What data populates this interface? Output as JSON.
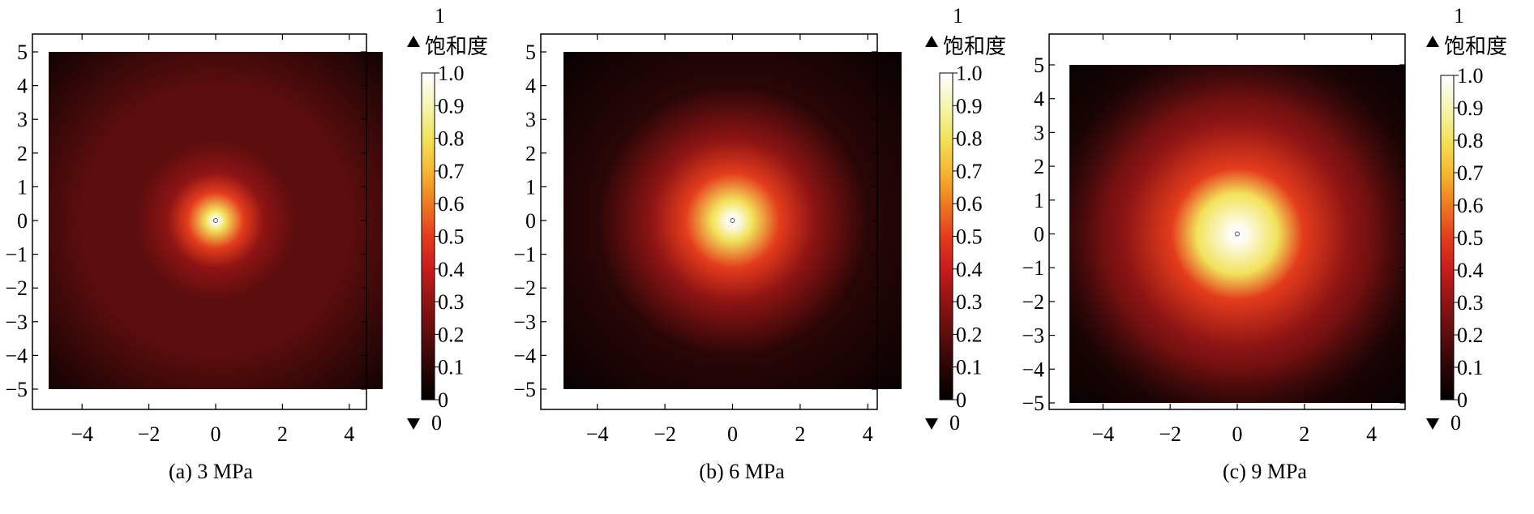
{
  "chart_data": [
    {
      "type": "heatmap",
      "caption": "(a) 3 MPa",
      "xlim": [
        -5,
        5
      ],
      "ylim": [
        -5,
        5
      ],
      "xticks": [
        -4,
        -2,
        0,
        2,
        4
      ],
      "yticks": [
        -5,
        -4,
        -3,
        -2,
        -1,
        0,
        1,
        2,
        3,
        4,
        5
      ],
      "saturation_profile": {
        "peak": 1.0,
        "core_radius": 0.3,
        "near_field_radius": 1.5,
        "background": 0.1
      },
      "colorbar": {
        "title": "饱和度",
        "max_marker": "1",
        "min_marker": "0",
        "ticks": [
          "0",
          "0.1",
          "0.2",
          "0.3",
          "0.4",
          "0.5",
          "0.6",
          "0.7",
          "0.8",
          "0.9",
          "1.0"
        ]
      }
    },
    {
      "type": "heatmap",
      "caption": "(b) 6 MPa",
      "xlim": [
        -5,
        5
      ],
      "ylim": [
        -5,
        5
      ],
      "xticks": [
        -4,
        -2,
        0,
        2,
        4
      ],
      "yticks": [
        -5,
        -4,
        -3,
        -2,
        -1,
        0,
        1,
        2,
        3,
        4,
        5
      ],
      "saturation_profile": {
        "peak": 1.0,
        "core_radius": 0.6,
        "near_field_radius": 2.5,
        "background": 0.05
      },
      "colorbar": {
        "title": "饱和度",
        "max_marker": "1",
        "min_marker": "0",
        "ticks": [
          "0",
          "0.1",
          "0.2",
          "0.3",
          "0.4",
          "0.5",
          "0.6",
          "0.7",
          "0.8",
          "0.9",
          "1.0"
        ]
      }
    },
    {
      "type": "heatmap",
      "caption": "(c) 9 MPa",
      "xlim": [
        -5,
        5
      ],
      "ylim": [
        -5,
        5
      ],
      "xticks": [
        -4,
        -2,
        0,
        2,
        4
      ],
      "yticks": [
        -5,
        -4,
        -3,
        -2,
        -1,
        0,
        1,
        2,
        3,
        4,
        5
      ],
      "saturation_profile": {
        "peak": 1.0,
        "core_radius": 1.2,
        "near_field_radius": 3.5,
        "background": 0.05
      },
      "colorbar": {
        "title": "饱和度",
        "max_marker": "1",
        "min_marker": "0",
        "ticks": [
          "0",
          "0.1",
          "0.2",
          "0.3",
          "0.4",
          "0.5",
          "0.6",
          "0.7",
          "0.8",
          "0.9",
          "1.0"
        ]
      }
    }
  ],
  "colormap": [
    "#000000",
    "#2a0606",
    "#5c0d0d",
    "#8e1414",
    "#c81c1c",
    "#e43c1c",
    "#ef7a22",
    "#f6b830",
    "#f2e25a",
    "#f4f6b0",
    "#ffffff"
  ]
}
